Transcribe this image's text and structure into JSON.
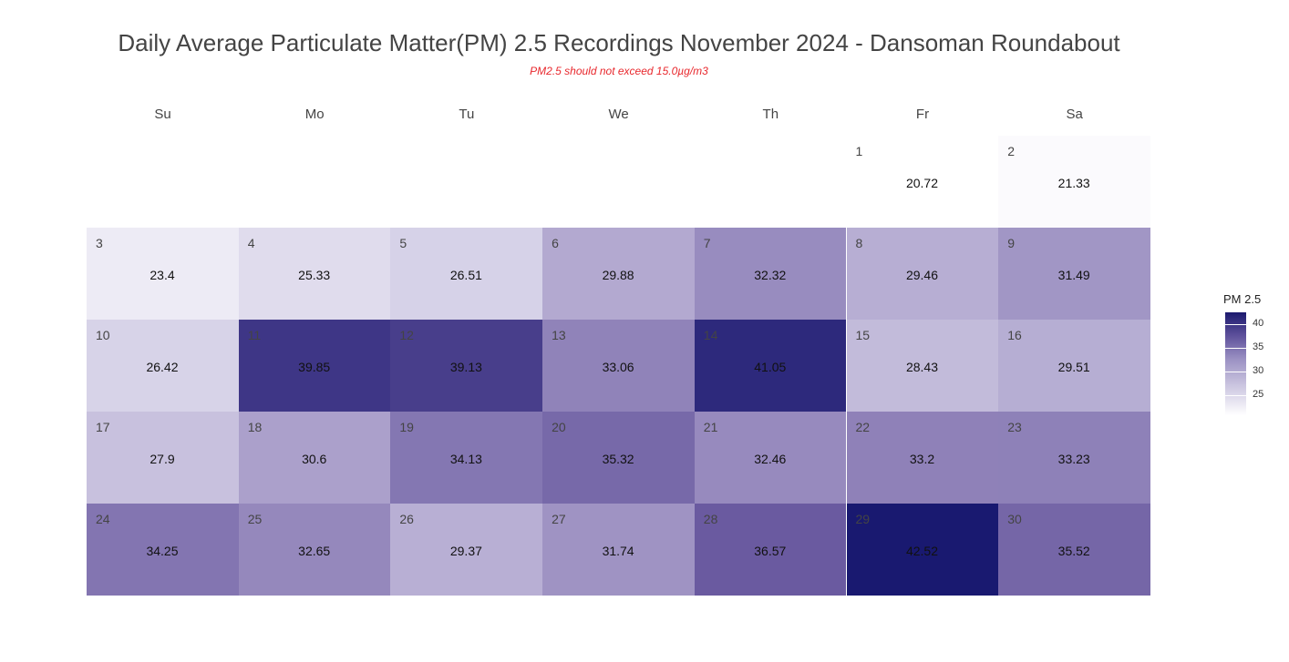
{
  "chart_data": {
    "type": "heatmap",
    "title": "Daily Average Particulate Matter(PM) 2.5 Recordings November 2024 -  Dansoman Roundabout",
    "subtitle": "PM2.5 should not exceed 15.0µg/m3",
    "weekdays": [
      "Su",
      "Mo",
      "Tu",
      "We",
      "Th",
      "Fr",
      "Sa"
    ],
    "first_weekday_index": 5,
    "days": [
      {
        "day": "1",
        "value": 20.72,
        "label": "20.72"
      },
      {
        "day": "2",
        "value": 21.33,
        "label": "21.33"
      },
      {
        "day": "3",
        "value": 23.4,
        "label": "23.4"
      },
      {
        "day": "4",
        "value": 25.33,
        "label": "25.33"
      },
      {
        "day": "5",
        "value": 26.51,
        "label": "26.51"
      },
      {
        "day": "6",
        "value": 29.88,
        "label": "29.88"
      },
      {
        "day": "7",
        "value": 32.32,
        "label": "32.32"
      },
      {
        "day": "8",
        "value": 29.46,
        "label": "29.46"
      },
      {
        "day": "9",
        "value": 31.49,
        "label": "31.49"
      },
      {
        "day": "10",
        "value": 26.42,
        "label": "26.42"
      },
      {
        "day": "11",
        "value": 39.85,
        "label": "39.85"
      },
      {
        "day": "12",
        "value": 39.13,
        "label": "39.13"
      },
      {
        "day": "13",
        "value": 33.06,
        "label": "33.06"
      },
      {
        "day": "14",
        "value": 41.05,
        "label": "41.05"
      },
      {
        "day": "15",
        "value": 28.43,
        "label": "28.43"
      },
      {
        "day": "16",
        "value": 29.51,
        "label": "29.51"
      },
      {
        "day": "17",
        "value": 27.9,
        "label": "27.9"
      },
      {
        "day": "18",
        "value": 30.6,
        "label": "30.6"
      },
      {
        "day": "19",
        "value": 34.13,
        "label": "34.13"
      },
      {
        "day": "20",
        "value": 35.32,
        "label": "35.32"
      },
      {
        "day": "21",
        "value": 32.46,
        "label": "32.46"
      },
      {
        "day": "22",
        "value": 33.2,
        "label": "33.2"
      },
      {
        "day": "23",
        "value": 33.23,
        "label": "33.23"
      },
      {
        "day": "24",
        "value": 34.25,
        "label": "34.25"
      },
      {
        "day": "25",
        "value": 32.65,
        "label": "32.65"
      },
      {
        "day": "26",
        "value": 29.37,
        "label": "29.37"
      },
      {
        "day": "27",
        "value": 31.74,
        "label": "31.74"
      },
      {
        "day": "28",
        "value": 36.57,
        "label": "36.57"
      },
      {
        "day": "29",
        "value": 42.52,
        "label": "42.52"
      },
      {
        "day": "30",
        "value": 35.52,
        "label": "35.52"
      }
    ],
    "color_scale": {
      "low": "#ffffff",
      "high": "#191970",
      "domain": [
        20.72,
        42.52
      ]
    },
    "legend": {
      "title": "PM 2.5",
      "ticks": [
        "25",
        "30",
        "35",
        "40"
      ],
      "placement": "right"
    }
  }
}
